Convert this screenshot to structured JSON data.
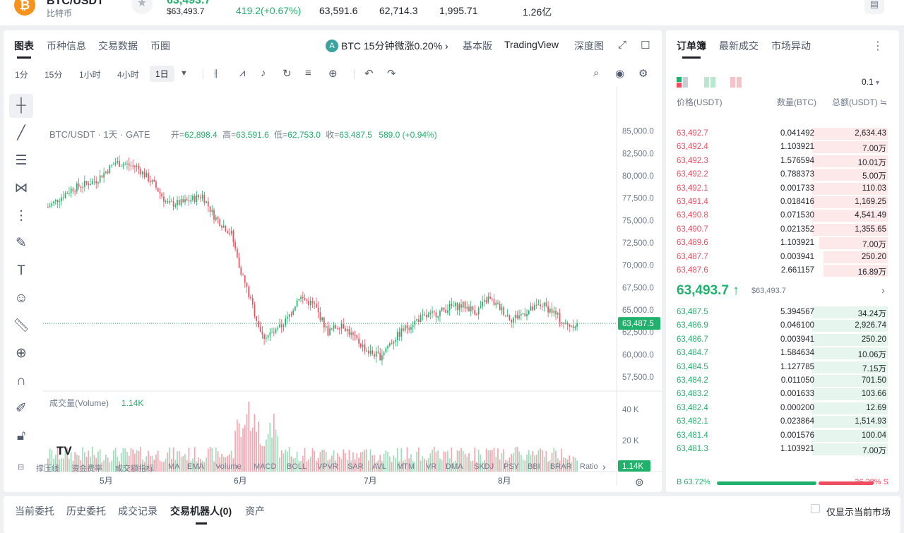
{
  "header": {
    "pair": "BTC/USDT",
    "coin_name": "比特币",
    "price": "63,493.7",
    "price_usd": "$63,493.7",
    "change": "419.2(+0.67%)",
    "high": "63,591.6",
    "low": "62,714.3",
    "volume_btc": "1,995.71",
    "volume_usdt": "1.26亿"
  },
  "chart_tabs": [
    "图表",
    "币种信息",
    "交易数据",
    "币圈"
  ],
  "promo": {
    "icon": "ai-icon",
    "text": "BTC 15分钟微涨0.20% ›"
  },
  "view_options": {
    "basic": "基本版",
    "tradingview": "TradingView",
    "depth": "深度图"
  },
  "timeframes": [
    "1分",
    "15分",
    "1小时",
    "4小时",
    "1日"
  ],
  "active_timeframe": "1日",
  "legend": {
    "symbol": "BTC/USDT · 1天 · GATE",
    "open_label": "开=",
    "open": "62,898.4",
    "high_label": "高=",
    "high": "63,591.6",
    "low_label": "低=",
    "low": "62,753.0",
    "close_label": "收=",
    "close": "63,487.5",
    "change": "589.0 (+0.94%)"
  },
  "volume_legend": {
    "label": "成交量(Volume)",
    "value": "1.14K"
  },
  "indicators": [
    "撑压线",
    "资金费率",
    "成交额指标",
    "MA",
    "EMA",
    "Volume",
    "MACD",
    "BOLL",
    "VPVR",
    "SAR",
    "AVL",
    "MTM",
    "VR",
    "DMA",
    "SKDJ",
    "PSY",
    "BBI",
    "BRAR",
    "Ratio"
  ],
  "colors": {
    "up": "#20b26c",
    "down": "#ef4d60",
    "bg": "#ffffff",
    "grid": "#f2f3f5"
  },
  "chart_data": {
    "type": "candlestick",
    "x_ticks": [
      "5月",
      "6月",
      "7月",
      "8月"
    ],
    "y_ticks": [
      "85,000.0",
      "82,500.0",
      "80,000.0",
      "77,500.0",
      "75,000.0",
      "72,500.0",
      "70,000.0",
      "67,500.0",
      "65,000.0",
      "62,500.0",
      "60,000.0",
      "57,500.0"
    ],
    "ylim": [
      56000,
      86000
    ],
    "last_price_label": "63,487.5",
    "volume_ticks": [
      "40 K",
      "20 K"
    ],
    "volume_last_label": "1.14K",
    "vol_ylim": [
      0,
      50
    ],
    "watermark": "TV"
  },
  "orderbook": {
    "tabs": [
      "订单簿",
      "最新成交",
      "市场异动"
    ],
    "precision": "0.1",
    "head": {
      "price": "价格(USDT)",
      "qty": "数量(BTC)",
      "total": "总额(USDT)"
    },
    "asks": [
      {
        "price": "63,492.7",
        "qty": "0.041492",
        "total": "2,634.43",
        "depth": 0.34
      },
      {
        "price": "63,492.4",
        "qty": "1.103921",
        "total": "7.00万",
        "depth": 0.34
      },
      {
        "price": "63,492.3",
        "qty": "1.576594",
        "total": "10.01万",
        "depth": 0.34
      },
      {
        "price": "63,492.2",
        "qty": "0.788373",
        "total": "5.00万",
        "depth": 0.34
      },
      {
        "price": "63,492.1",
        "qty": "0.001733",
        "total": "110.03",
        "depth": 0.34
      },
      {
        "price": "63,491.4",
        "qty": "0.018416",
        "total": "1,169.25",
        "depth": 0.34
      },
      {
        "price": "63,490.8",
        "qty": "0.071530",
        "total": "4,541.49",
        "depth": 0.34
      },
      {
        "price": "63,490.7",
        "qty": "0.021352",
        "total": "1,355.65",
        "depth": 0.34
      },
      {
        "price": "63,489.6",
        "qty": "1.103921",
        "total": "7.00万",
        "depth": 0.31
      },
      {
        "price": "63,487.7",
        "qty": "0.003941",
        "total": "250.20",
        "depth": 0.29
      },
      {
        "price": "63,487.6",
        "qty": "2.661157",
        "total": "16.89万",
        "depth": 0.29
      }
    ],
    "mid_price": "63,493.7 ↑",
    "mid_price_usd": "$63,493.7",
    "bids": [
      {
        "price": "63,487.5",
        "qty": "5.394567",
        "total": "34.24万",
        "depth": 0.34
      },
      {
        "price": "63,486.9",
        "qty": "0.046100",
        "total": "2,926.74",
        "depth": 0.34
      },
      {
        "price": "63,486.7",
        "qty": "0.003941",
        "total": "250.20",
        "depth": 0.34
      },
      {
        "price": "63,484.7",
        "qty": "1.584634",
        "total": "10.06万",
        "depth": 0.34
      },
      {
        "price": "63,484.5",
        "qty": "1.127785",
        "total": "7.15万",
        "depth": 0.34
      },
      {
        "price": "63,484.2",
        "qty": "0.011050",
        "total": "701.50",
        "depth": 0.34
      },
      {
        "price": "63,483.2",
        "qty": "0.001633",
        "total": "103.66",
        "depth": 0.34
      },
      {
        "price": "63,482.4",
        "qty": "0.000200",
        "total": "12.69",
        "depth": 0.34
      },
      {
        "price": "63,482.1",
        "qty": "0.023864",
        "total": "1,514.93",
        "depth": 0.34
      },
      {
        "price": "63,481.4",
        "qty": "0.001576",
        "total": "100.04",
        "depth": 0.34
      },
      {
        "price": "63,481.3",
        "qty": "1.103921",
        "total": "7.00万",
        "depth": 0.34
      }
    ],
    "buy_ratio": "B 63.72%",
    "sell_ratio": "36.28% S",
    "buy_fraction": 0.6372
  },
  "bottom_tabs": [
    "当前委托",
    "历史委托",
    "成交记录",
    "交易机器人(0)",
    "资产"
  ],
  "bottom_checkbox": "仅显示当前市场"
}
